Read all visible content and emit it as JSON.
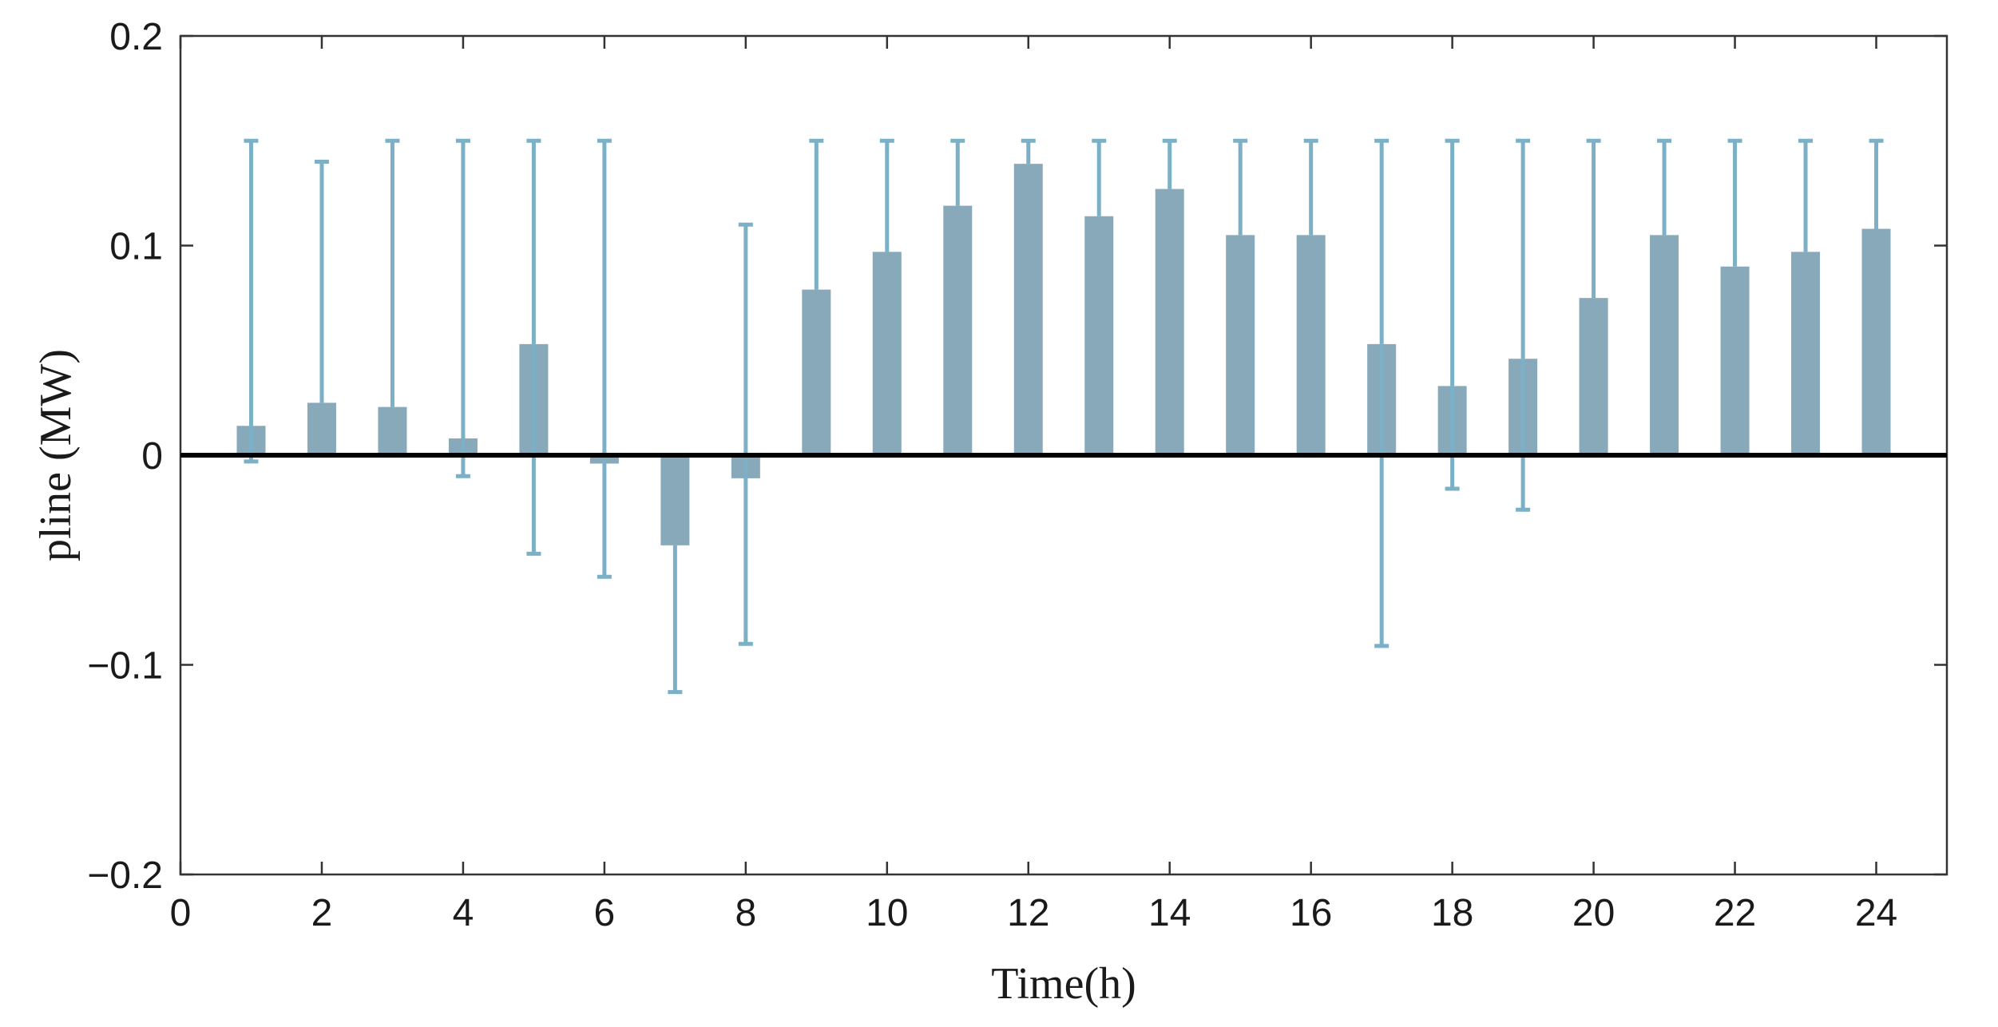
{
  "chart_data": {
    "type": "bar",
    "title": "",
    "xlabel": "Time(h)",
    "ylabel": "pline (MW)",
    "xlim": [
      0,
      25
    ],
    "ylim": [
      -0.2,
      0.2
    ],
    "x_ticks": [
      0,
      2,
      4,
      6,
      8,
      10,
      12,
      14,
      16,
      18,
      20,
      22,
      24
    ],
    "x_tick_labels": [
      "0",
      "2",
      "4",
      "6",
      "8",
      "10",
      "12",
      "14",
      "16",
      "18",
      "20",
      "22",
      "24"
    ],
    "y_ticks": [
      -0.2,
      -0.1,
      0,
      0.1,
      0.2
    ],
    "y_tick_labels": [
      "−0.2",
      "−0.1",
      "0",
      "0.1",
      "0.2"
    ],
    "grid": false,
    "legend": "none",
    "colors": {
      "bar": "#87a9b9",
      "errorbar": "#7bb0c6",
      "zero_line": "#000000",
      "axes": "#333333"
    },
    "series": [
      {
        "x": [
          1,
          2,
          3,
          4,
          5,
          6,
          7,
          8,
          9,
          10,
          11,
          12,
          13,
          14,
          15,
          16,
          17,
          18,
          19,
          20,
          21,
          22,
          23,
          24
        ],
        "values": [
          0.014,
          0.025,
          0.023,
          0.008,
          0.053,
          -0.004,
          -0.043,
          -0.011,
          0.079,
          0.097,
          0.119,
          0.139,
          0.114,
          0.127,
          0.105,
          0.105,
          0.053,
          0.033,
          0.046,
          0.075,
          0.105,
          0.09,
          0.097,
          0.108
        ],
        "err_upper": [
          0.15,
          0.14,
          0.15,
          0.15,
          0.15,
          0.15,
          null,
          0.11,
          0.15,
          0.15,
          0.15,
          0.15,
          0.15,
          0.15,
          0.15,
          0.15,
          0.15,
          0.15,
          0.15,
          0.15,
          0.15,
          0.15,
          0.15,
          0.15
        ],
        "err_lower": [
          -0.003,
          null,
          null,
          -0.01,
          -0.047,
          -0.058,
          -0.113,
          -0.09,
          null,
          null,
          null,
          null,
          null,
          null,
          null,
          null,
          -0.091,
          -0.016,
          -0.026,
          null,
          null,
          null,
          null,
          null
        ]
      }
    ]
  }
}
